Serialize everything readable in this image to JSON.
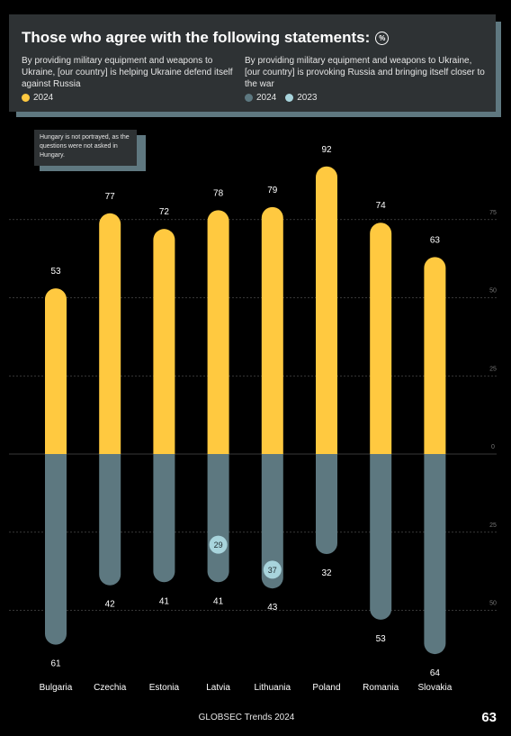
{
  "header": {
    "title": "Those who agree with the following statements:",
    "unit_icon": "%",
    "statement_1": "By providing military equipment and weapons to Ukraine, [our country] is helping Ukraine defend itself against Russia",
    "statement_2": "By providing military equipment and weapons to Ukraine, [our country] is provoking Russia and bringing itself closer to the war",
    "legend_1": [
      {
        "label": "2024",
        "color": "#ffc940"
      }
    ],
    "legend_2": [
      {
        "label": "2024",
        "color": "#5d7880"
      },
      {
        "label": "2023",
        "color": "#a8d4dc"
      }
    ]
  },
  "note": "Hungary is not portrayed, as the questions were not asked in Hungary.",
  "chart_data": {
    "type": "bar",
    "categories": [
      "Bulgaria",
      "Czechia",
      "Estonia",
      "Latvia",
      "Lithuania",
      "Poland",
      "Romania",
      "Slovakia"
    ],
    "series": [
      {
        "name": "2024",
        "values": [
          53,
          77,
          72,
          78,
          79,
          92,
          74,
          63
        ],
        "color": "#ffc940"
      },
      {
        "name": "2024",
        "values": [
          61,
          42,
          41,
          41,
          43,
          32,
          53,
          64
        ],
        "color": "#5d7880"
      },
      {
        "name": "2023",
        "values": [
          null,
          null,
          null,
          29,
          37,
          null,
          null,
          null
        ],
        "color": "#a8d4dc"
      }
    ],
    "axis_ticks_up": [
      "75",
      "50",
      "25",
      "0"
    ],
    "axis_ticks_down": [
      "25",
      "50"
    ],
    "ylim": [
      -75,
      100
    ],
    "grid": true
  },
  "footer": "GLOBSEC Trends 2024",
  "page_number": "63"
}
